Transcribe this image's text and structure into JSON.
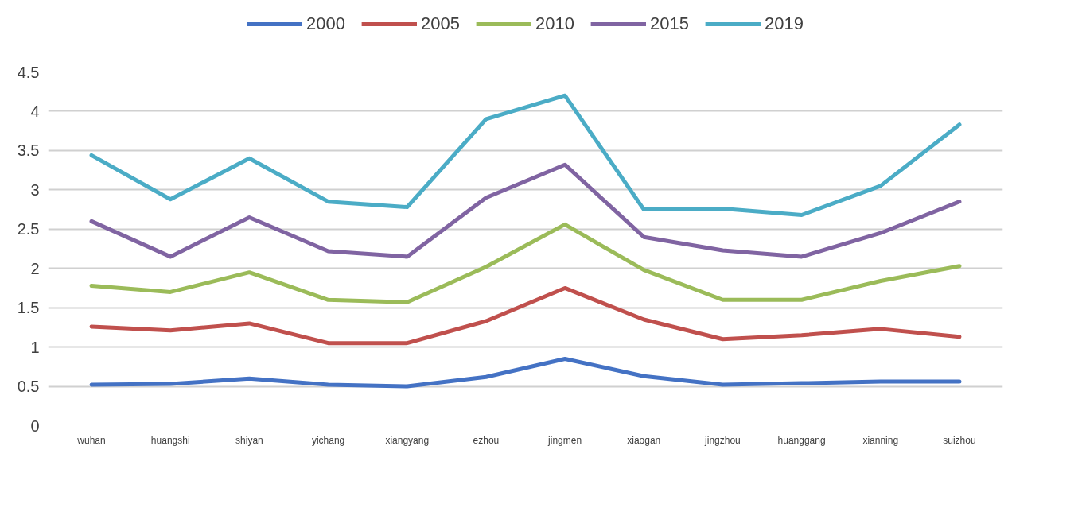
{
  "chart_data": {
    "type": "line",
    "categories": [
      "wuhan",
      "huangshi",
      "shiyan",
      "yichang",
      "xiangyang",
      "ezhou",
      "jingmen",
      "xiaogan",
      "jingzhou",
      "huanggang",
      "xianning",
      "suizhou"
    ],
    "series": [
      {
        "name": "2000",
        "color": "#4472c4",
        "values": [
          0.52,
          0.53,
          0.6,
          0.52,
          0.5,
          0.62,
          0.85,
          0.63,
          0.52,
          0.54,
          0.56,
          0.56
        ]
      },
      {
        "name": "2005",
        "color": "#c0504d",
        "values": [
          1.26,
          1.21,
          1.3,
          1.05,
          1.05,
          1.33,
          1.75,
          1.35,
          1.1,
          1.15,
          1.23,
          1.13
        ]
      },
      {
        "name": "2010",
        "color": "#9bbb59",
        "values": [
          1.78,
          1.7,
          1.95,
          1.6,
          1.57,
          2.02,
          2.56,
          1.98,
          1.6,
          1.6,
          1.84,
          2.03
        ]
      },
      {
        "name": "2015",
        "color": "#8064a2",
        "values": [
          2.6,
          2.15,
          2.65,
          2.22,
          2.15,
          2.9,
          3.32,
          2.4,
          2.23,
          2.15,
          2.45,
          2.85
        ]
      },
      {
        "name": "2019",
        "color": "#4bacc6",
        "values": [
          3.44,
          2.88,
          3.4,
          2.85,
          2.78,
          3.9,
          4.2,
          2.75,
          2.76,
          2.68,
          3.05,
          3.83
        ]
      }
    ],
    "ylim": [
      0,
      4.5
    ],
    "yticks": [
      0,
      0.5,
      1,
      1.5,
      2,
      2.5,
      3,
      3.5,
      4,
      4.5
    ],
    "grid": "y",
    "legend": "top",
    "marker": "none",
    "line_style": "solid"
  }
}
